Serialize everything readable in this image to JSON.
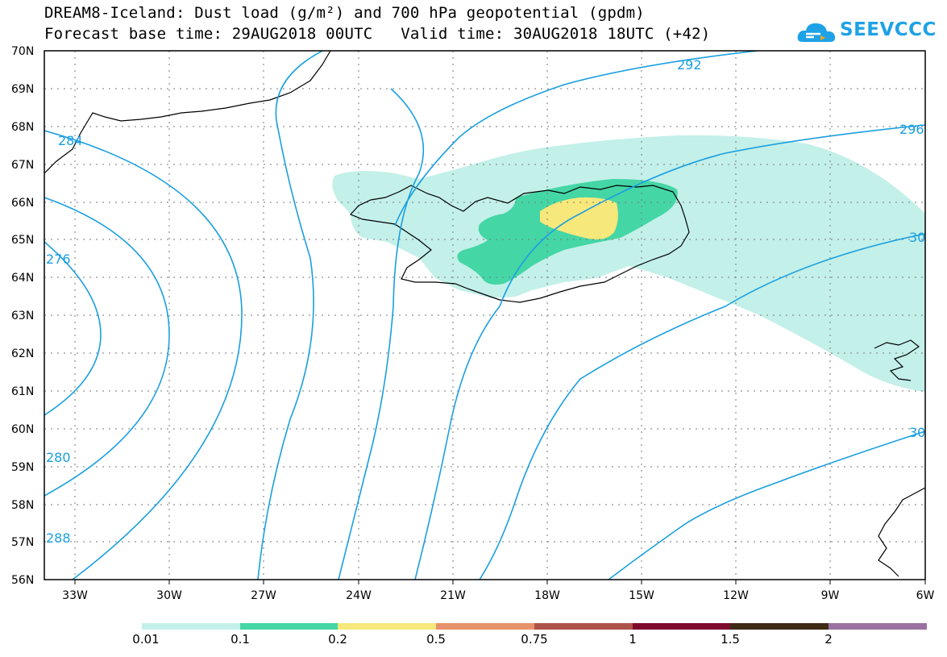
{
  "header": {
    "title_line1": "DREAM8-Iceland: Dust load (g/m²) and 700 hPa geopotential (gpdm)",
    "title_line2": "Forecast base time: 29AUG2018 00UTC   Valid time: 30AUG2018 18UTC (+42)"
  },
  "logo": {
    "text": "SEEVCCC",
    "icon": "cloud-icon",
    "color": "#1ea2e5"
  },
  "axes": {
    "lat_labels": [
      "70N",
      "69N",
      "68N",
      "67N",
      "66N",
      "65N",
      "64N",
      "63N",
      "62N",
      "61N",
      "60N",
      "59N",
      "58N",
      "57N",
      "56N"
    ],
    "lon_labels": [
      "33W",
      "30W",
      "27W",
      "24W",
      "21W",
      "18W",
      "15W",
      "12W",
      "9W",
      "6W"
    ]
  },
  "contour_labels": [
    "292",
    "296",
    "284",
    "276",
    "280",
    "288",
    "30",
    "30"
  ],
  "colorbar": {
    "ticks": [
      "0.01",
      "0.1",
      "0.2",
      "0.5",
      "0.75",
      "1",
      "1.5",
      "2"
    ],
    "colors": [
      "#c3f0e9",
      "#45d6a6",
      "#f6e87a",
      "#e6926a",
      "#ad534a",
      "#7e0b2e",
      "#3e2b15",
      "#9a72a2"
    ]
  },
  "colors": {
    "contour": "#1a9fe0",
    "dust_low": "#c3f0e9",
    "dust_mid": "#45d6a6",
    "dust_high": "#f6e87a"
  }
}
